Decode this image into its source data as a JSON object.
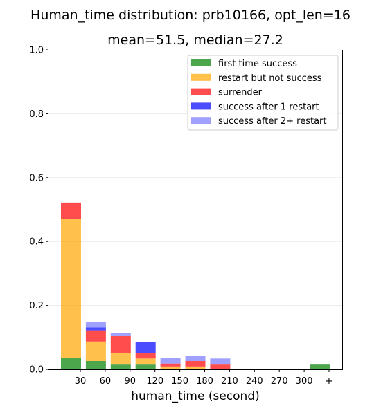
{
  "chart_data": {
    "type": "bar",
    "stacked": true,
    "title": "Human_time distribution: prb10166, opt_len=16",
    "subtitle": "mean=51.5, median=27.2",
    "xlabel": "human_time (second)",
    "ylabel": "",
    "ylim": [
      0,
      1.0
    ],
    "yticks": [
      "0.0",
      "0.2",
      "0.4",
      "0.6",
      "0.8",
      "1.0"
    ],
    "xticks": [
      "30",
      "60",
      "90",
      "120",
      "150",
      "180",
      "210",
      "240",
      "270",
      "300",
      "+"
    ],
    "categories": [
      "0-30",
      "30-60",
      "60-90",
      "90-120",
      "120-150",
      "150-180",
      "180-210",
      "210-240",
      "240-270",
      "270-300",
      "300+"
    ],
    "grid": true,
    "legend_position": "top-right",
    "series": [
      {
        "name": "first time success",
        "color": "#008000",
        "values": [
          0.035,
          0.026,
          0.017,
          0.017,
          0.0,
          0.0,
          0.0,
          0.0,
          0.0,
          0.0,
          0.017
        ]
      },
      {
        "name": "restart but not success",
        "color": "#ffa500",
        "values": [
          0.435,
          0.061,
          0.035,
          0.017,
          0.009,
          0.009,
          0.0,
          0.0,
          0.0,
          0.0,
          0.0
        ]
      },
      {
        "name": "surrender",
        "color": "#ff0000",
        "values": [
          0.052,
          0.035,
          0.052,
          0.017,
          0.009,
          0.017,
          0.017,
          0.0,
          0.0,
          0.0,
          0.0
        ]
      },
      {
        "name": "success after 1 restart",
        "color": "#0000ff",
        "values": [
          0.0,
          0.009,
          0.0,
          0.035,
          0.0,
          0.0,
          0.0,
          0.0,
          0.0,
          0.0,
          0.0
        ]
      },
      {
        "name": "success after 2+ restart",
        "color": "#7777ff",
        "values": [
          0.0,
          0.017,
          0.009,
          0.0,
          0.017,
          0.017,
          0.017,
          0.0,
          0.0,
          0.0,
          0.0
        ]
      }
    ]
  }
}
